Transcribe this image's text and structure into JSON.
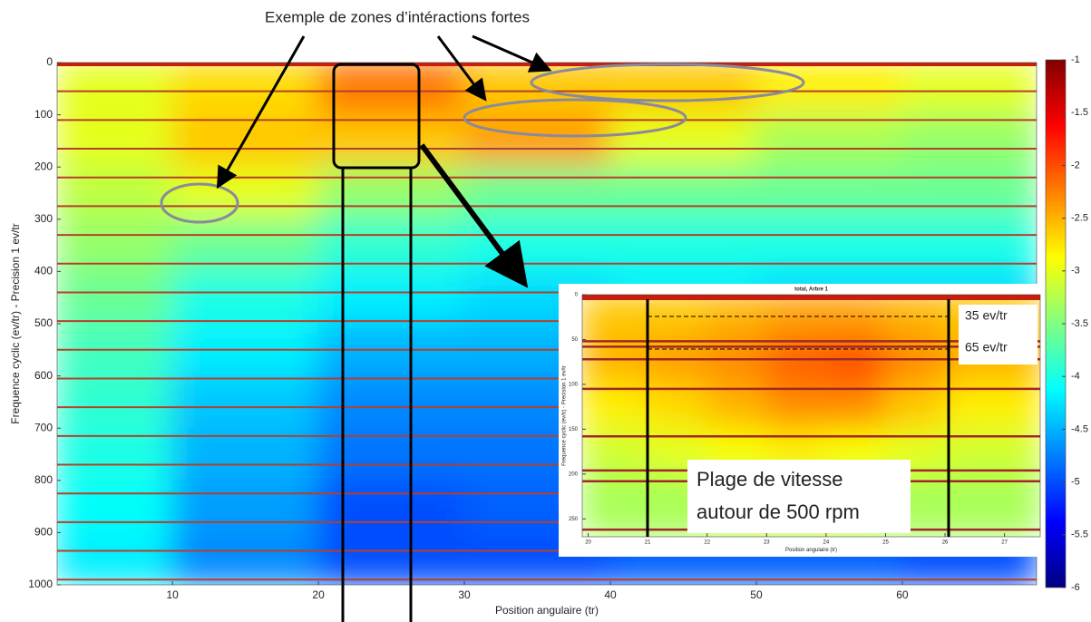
{
  "annotation": "Exemple de zones d’intéractions fortes",
  "chart_data": [
    {
      "type": "heatmap",
      "xlabel": "Position angulaire (tr)",
      "ylabel": "Frequence cyclic (ev/tr) - Precision 1 ev/tr",
      "xlim": [
        2.1,
        69.2
      ],
      "ylim": [
        1000,
        0
      ],
      "xticks": [
        10,
        20,
        30,
        40,
        50,
        60
      ],
      "yticks": [
        0,
        100,
        200,
        300,
        400,
        500,
        600,
        700,
        800,
        900,
        1000
      ],
      "x_edges": [
        2.1,
        10,
        20,
        30,
        40,
        50,
        60,
        69.2
      ],
      "y_edges": [
        0,
        100,
        200,
        300,
        400,
        500,
        600,
        700,
        800,
        900,
        1000
      ],
      "z": [
        [
          -3.0,
          -2.7,
          -2.2,
          -2.6,
          -2.6,
          -2.8,
          -3.0
        ],
        [
          -3.0,
          -2.6,
          -2.6,
          -2.4,
          -3.0,
          -3.3,
          -3.4
        ],
        [
          -3.2,
          -3.0,
          -3.4,
          -3.6,
          -3.6,
          -3.6,
          -3.6
        ],
        [
          -3.4,
          -3.6,
          -3.9,
          -4.0,
          -4.0,
          -4.0,
          -4.0
        ],
        [
          -3.6,
          -4.0,
          -4.2,
          -4.3,
          -4.2,
          -4.3,
          -4.3
        ],
        [
          -3.8,
          -4.2,
          -4.5,
          -4.5,
          -4.4,
          -4.4,
          -4.4
        ],
        [
          -3.9,
          -4.4,
          -4.7,
          -4.7,
          -4.6,
          -4.6,
          -4.6
        ],
        [
          -4.0,
          -4.5,
          -4.8,
          -4.8,
          -4.7,
          -4.7,
          -4.7
        ],
        [
          -4.1,
          -4.6,
          -5.0,
          -4.9,
          -4.8,
          -4.8,
          -4.8
        ],
        [
          -4.2,
          -4.7,
          -5.0,
          -5.0,
          -4.9,
          -4.9,
          -5.0
        ]
      ],
      "zlim": [
        -6,
        -1
      ],
      "colorbar_ticks": [
        -1,
        -1.5,
        -2,
        -2.5,
        -3,
        -3.5,
        -4,
        -4.5,
        -5,
        -5.5,
        -6
      ],
      "harmonic_lines": [
        55,
        110,
        165,
        220,
        275,
        330,
        385,
        440,
        495,
        550,
        605,
        660,
        715,
        770,
        825,
        880,
        935,
        990
      ],
      "harmonic_color": "#b5402a"
    },
    {
      "type": "heatmap",
      "title": "total, Arbre 1",
      "xlabel": "Position angulaire (tr)",
      "ylabel": "Frequence cyclic (ev/tr) - Precision 1 ev/tr",
      "xlim": [
        19.9,
        27.6
      ],
      "ylim": [
        270,
        0
      ],
      "xticks": [
        20,
        21,
        22,
        23,
        24,
        25,
        26,
        27
      ],
      "yticks": [
        0,
        50,
        100,
        150,
        200,
        250
      ],
      "x_edges": [
        19.9,
        21,
        22,
        23,
        24,
        25,
        26,
        27.6
      ],
      "y_edges": [
        0,
        50,
        100,
        150,
        200,
        270
      ],
      "z": [
        [
          -2.6,
          -2.6,
          -2.5,
          -2.4,
          -2.4,
          -2.5,
          -2.6
        ],
        [
          -2.5,
          -2.4,
          -2.3,
          -2.1,
          -2.0,
          -2.3,
          -2.5
        ],
        [
          -2.8,
          -2.7,
          -2.5,
          -2.3,
          -2.3,
          -2.6,
          -2.8
        ],
        [
          -3.1,
          -3.0,
          -2.9,
          -2.8,
          -2.9,
          -3.0,
          -3.1
        ],
        [
          -3.3,
          -3.3,
          -3.2,
          -3.2,
          -3.2,
          -3.3,
          -3.3
        ]
      ],
      "zlim": [
        -6,
        -1
      ],
      "harmonic_lines": [
        52,
        58,
        72,
        105,
        158,
        196,
        208,
        262
      ],
      "harmonic_color": "#a0282a",
      "labels": [
        "35 ev/tr",
        "65 ev/tr"
      ],
      "note": [
        "Plage de vitesse",
        "autour de 500 rpm"
      ]
    }
  ]
}
